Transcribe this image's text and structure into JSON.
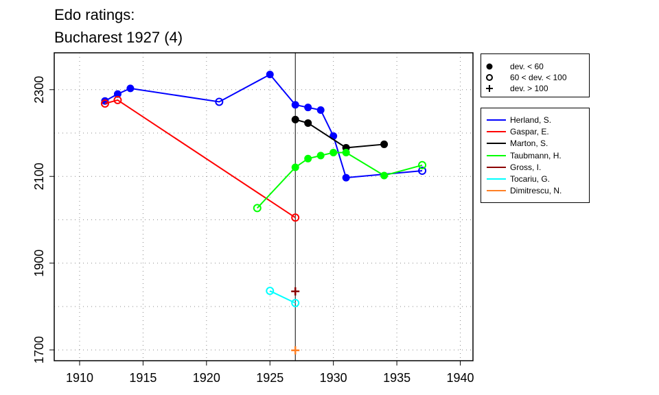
{
  "chart_data": {
    "type": "line",
    "title": "Edo ratings:",
    "subtitle": "Bucharest 1927 (4)",
    "xlabel": "",
    "ylabel": "",
    "xlim": [
      1908,
      1941
    ],
    "ylim": [
      1675,
      2385
    ],
    "x_ticks": [
      1910,
      1915,
      1920,
      1925,
      1930,
      1935,
      1940
    ],
    "y_ticks": [
      1700,
      1900,
      2100,
      2300
    ],
    "x_grid": [
      1910,
      1915,
      1920,
      1925,
      1930,
      1935,
      1940
    ],
    "y_grid": [
      1800,
      2000,
      2200
    ],
    "grid": true,
    "reference_line_x": 1927,
    "status_legend": [
      {
        "marker": "filled",
        "label": "dev. < 60"
      },
      {
        "marker": "open",
        "label": "60 < dev. < 100"
      },
      {
        "marker": "plus",
        "label": "dev. > 100"
      }
    ],
    "series": [
      {
        "name": "Herland, S.",
        "color": "#0000ff",
        "points": [
          {
            "x": 1912,
            "y": 2274,
            "m": "filled"
          },
          {
            "x": 1913,
            "y": 2290,
            "m": "filled"
          },
          {
            "x": 1914,
            "y": 2303,
            "m": "filled"
          },
          {
            "x": 1921,
            "y": 2272,
            "m": "open"
          },
          {
            "x": 1925,
            "y": 2335,
            "m": "filled"
          },
          {
            "x": 1927,
            "y": 2265,
            "m": "filled"
          },
          {
            "x": 1928,
            "y": 2259,
            "m": "filled"
          },
          {
            "x": 1929,
            "y": 2253,
            "m": "filled"
          },
          {
            "x": 1930,
            "y": 2193,
            "m": "filled"
          },
          {
            "x": 1931,
            "y": 2097,
            "m": "filled"
          },
          {
            "x": 1937,
            "y": 2113,
            "m": "open"
          }
        ]
      },
      {
        "name": "Gaspar, E.",
        "color": "#ff0000",
        "points": [
          {
            "x": 1912,
            "y": 2268,
            "m": "open"
          },
          {
            "x": 1913,
            "y": 2276,
            "m": "open"
          },
          {
            "x": 1927,
            "y": 2005,
            "m": "open"
          }
        ]
      },
      {
        "name": "Marton, S.",
        "color": "#000000",
        "points": [
          {
            "x": 1927,
            "y": 2231,
            "m": "filled"
          },
          {
            "x": 1928,
            "y": 2223,
            "m": "filled"
          },
          {
            "x": 1931,
            "y": 2166,
            "m": "filled"
          },
          {
            "x": 1934,
            "y": 2174,
            "m": "filled"
          }
        ]
      },
      {
        "name": "Taubmann, H.",
        "color": "#00ff00",
        "points": [
          {
            "x": 1924,
            "y": 2027,
            "m": "open"
          },
          {
            "x": 1927,
            "y": 2121,
            "m": "filled"
          },
          {
            "x": 1928,
            "y": 2141,
            "m": "filled"
          },
          {
            "x": 1929,
            "y": 2148,
            "m": "filled"
          },
          {
            "x": 1930,
            "y": 2155,
            "m": "filled"
          },
          {
            "x": 1931,
            "y": 2155,
            "m": "filled"
          },
          {
            "x": 1934,
            "y": 2102,
            "m": "filled"
          },
          {
            "x": 1937,
            "y": 2126,
            "m": "open"
          }
        ]
      },
      {
        "name": "Gross, I.",
        "color": "#8b0000",
        "points": [
          {
            "x": 1927,
            "y": 1835,
            "m": "plus"
          }
        ]
      },
      {
        "name": "Tocariu, G.",
        "color": "#00ffff",
        "points": [
          {
            "x": 1925,
            "y": 1836,
            "m": "open"
          },
          {
            "x": 1927,
            "y": 1808,
            "m": "open"
          }
        ]
      },
      {
        "name": "Dimitrescu, N.",
        "color": "#ff7f24",
        "points": [
          {
            "x": 1927,
            "y": 1699,
            "m": "plus"
          }
        ]
      }
    ]
  }
}
